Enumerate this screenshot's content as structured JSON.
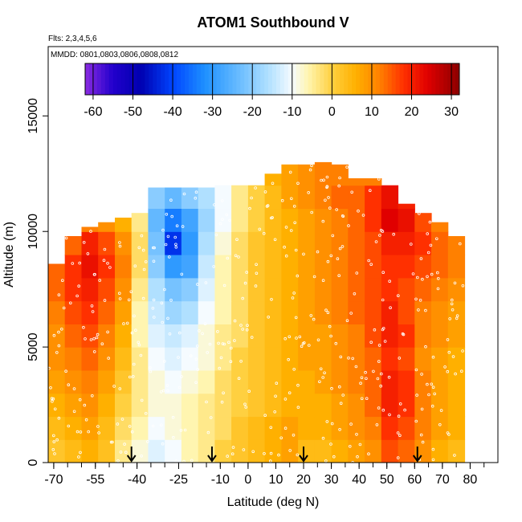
{
  "chart_data": {
    "type": "heatmap",
    "title": "ATOM1 Southbound V",
    "subtitle_flights": "Flts: 2,3,4,5,6",
    "subtitle_dates": "MMDD: 0801,0803,0806,0808,0812",
    "xlabel": "Latitude (deg N)",
    "ylabel": "Altitude (m)",
    "xlim": [
      -72,
      90
    ],
    "ylim": [
      0,
      18000
    ],
    "x_ticks": [
      -70,
      -55,
      -40,
      -25,
      -10,
      0,
      10,
      20,
      30,
      40,
      50,
      60,
      70,
      80
    ],
    "x_tick_labels": [
      "-70",
      "-55",
      "-40",
      "-25",
      "-10",
      "0",
      "10",
      "20",
      "30",
      "40",
      "50",
      "60",
      "70",
      "80"
    ],
    "y_ticks": [
      0,
      5000,
      10000,
      15000
    ],
    "y_tick_labels": [
      "0",
      "5000",
      "10000",
      "15000"
    ],
    "colorbar": {
      "range": [
        -62,
        32
      ],
      "ticks": [
        -60,
        -50,
        -40,
        -30,
        -20,
        -10,
        0,
        10,
        20,
        30
      ],
      "tick_labels": [
        "-60",
        "-50",
        "-40",
        "-30",
        "-20",
        "-10",
        "0",
        "10",
        "20",
        "30"
      ],
      "stops": [
        {
          "value": -62,
          "color": "#8a2be2"
        },
        {
          "value": -55,
          "color": "#2200cc"
        },
        {
          "value": -48,
          "color": "#0000b0"
        },
        {
          "value": -40,
          "color": "#0044ff"
        },
        {
          "value": -32,
          "color": "#1e90ff"
        },
        {
          "value": -24,
          "color": "#63b8ff"
        },
        {
          "value": -16,
          "color": "#b0e0ff"
        },
        {
          "value": -10,
          "color": "#f5fbff"
        },
        {
          "value": -6,
          "color": "#fff5b0"
        },
        {
          "value": 0,
          "color": "#ffd040"
        },
        {
          "value": 6,
          "color": "#ffb000"
        },
        {
          "value": 12,
          "color": "#ff8000"
        },
        {
          "value": 18,
          "color": "#ff3000"
        },
        {
          "value": 24,
          "color": "#e00000"
        },
        {
          "value": 32,
          "color": "#8b0000"
        }
      ]
    },
    "latitude_bins": [
      -69,
      -63,
      -57,
      -51,
      -45,
      -39,
      -33,
      -27,
      -21,
      -15,
      -9,
      -3,
      3,
      9,
      15,
      21,
      27,
      33,
      39,
      45,
      51,
      57,
      63,
      69,
      75
    ],
    "altitude_bins": [
      500,
      1500,
      2500,
      3500,
      4500,
      5500,
      6500,
      7500,
      8500,
      9500,
      10500,
      11500,
      12500
    ],
    "max_altitude_by_latitude": [
      8600,
      9800,
      10200,
      10400,
      10600,
      10800,
      11900,
      11900,
      11900,
      11900,
      12000,
      12000,
      12000,
      12500,
      12900,
      12900,
      13300,
      12900,
      12300,
      12300,
      12000,
      11200,
      10800,
      10400,
      9800
    ],
    "v_wind_ms": [
      [
        2,
        4,
        6,
        3,
        -4,
        -8,
        -12,
        -10,
        -6,
        -4,
        0,
        2,
        4,
        6,
        8,
        4,
        4,
        6,
        8,
        10,
        16,
        14,
        10,
        6,
        4
      ],
      [
        4,
        6,
        8,
        4,
        -2,
        -6,
        -10,
        -8,
        -6,
        -4,
        -2,
        2,
        4,
        6,
        8,
        6,
        6,
        8,
        10,
        12,
        18,
        16,
        12,
        8,
        6
      ],
      [
        6,
        8,
        10,
        6,
        0,
        -4,
        -8,
        -8,
        -6,
        -4,
        -2,
        0,
        2,
        4,
        6,
        6,
        6,
        8,
        10,
        14,
        20,
        18,
        12,
        8,
        6
      ],
      [
        8,
        10,
        12,
        8,
        2,
        -4,
        -8,
        -10,
        -8,
        -6,
        -2,
        0,
        2,
        4,
        6,
        6,
        8,
        10,
        12,
        14,
        20,
        18,
        12,
        8,
        6
      ],
      [
        10,
        12,
        14,
        10,
        4,
        -4,
        -10,
        -12,
        -10,
        -8,
        -4,
        0,
        2,
        4,
        6,
        8,
        8,
        10,
        12,
        14,
        18,
        16,
        10,
        8,
        6
      ],
      [
        10,
        14,
        16,
        12,
        6,
        -6,
        -12,
        -14,
        -12,
        -8,
        -4,
        -2,
        2,
        4,
        6,
        8,
        8,
        10,
        12,
        16,
        20,
        18,
        12,
        10,
        8
      ],
      [
        12,
        16,
        18,
        14,
        8,
        -6,
        -14,
        -18,
        -16,
        -10,
        -6,
        -2,
        2,
        4,
        6,
        8,
        10,
        12,
        14,
        16,
        20,
        16,
        12,
        10,
        8
      ],
      [
        14,
        18,
        20,
        16,
        10,
        -4,
        -16,
        -22,
        -20,
        -12,
        -6,
        -2,
        2,
        4,
        6,
        8,
        10,
        12,
        14,
        16,
        18,
        16,
        14,
        12,
        10
      ],
      [
        14,
        18,
        22,
        18,
        12,
        -2,
        -20,
        -30,
        -28,
        -14,
        -6,
        -2,
        2,
        4,
        6,
        8,
        10,
        12,
        14,
        16,
        18,
        18,
        16,
        14,
        12
      ],
      [
        10,
        14,
        20,
        16,
        10,
        -2,
        -22,
        -42,
        -30,
        -16,
        -8,
        -2,
        2,
        4,
        6,
        8,
        10,
        12,
        14,
        16,
        20,
        20,
        18,
        14,
        12
      ],
      [
        4,
        8,
        12,
        10,
        6,
        -4,
        -24,
        -34,
        -28,
        -18,
        -10,
        -4,
        0,
        4,
        6,
        8,
        10,
        12,
        14,
        18,
        24,
        22,
        16,
        12,
        10
      ],
      [
        2,
        4,
        6,
        6,
        4,
        -4,
        -20,
        -24,
        -20,
        -16,
        -10,
        -4,
        0,
        4,
        8,
        10,
        12,
        14,
        14,
        18,
        22,
        20,
        14,
        10,
        8
      ],
      [
        0,
        2,
        4,
        4,
        2,
        0,
        -4,
        -6,
        -6,
        -4,
        -2,
        0,
        4,
        6,
        8,
        10,
        12,
        12,
        12,
        12,
        14,
        12,
        10,
        8,
        6
      ]
    ],
    "sample_points_count": 450,
    "southbound_markers_lat": [
      -42,
      -13,
      20,
      61
    ]
  }
}
